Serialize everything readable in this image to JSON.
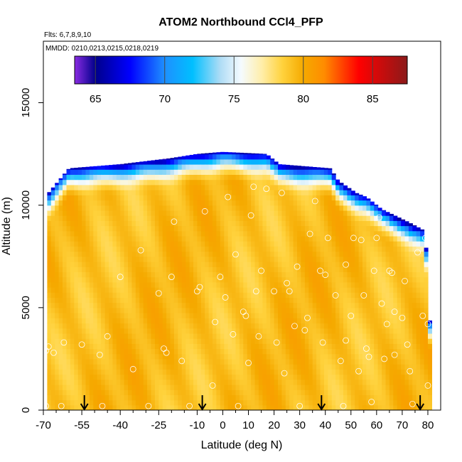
{
  "chart_data": {
    "type": "heatmap",
    "title": "ATOM2 Northbound CCl4_PFP",
    "subtitle_flights": "Flts: 6,7,8,9,10",
    "subtitle_dates": "MMDD: 0210,0213,0215,0218,0219",
    "xlabel": "Latitude (deg N)",
    "ylabel": "Altitude (m)",
    "xlim": [
      -70,
      85
    ],
    "ylim": [
      0,
      18000
    ],
    "x_ticks": [
      -70,
      -55,
      -40,
      -25,
      -10,
      0,
      10,
      20,
      30,
      40,
      50,
      60,
      70,
      80
    ],
    "x_tick_labels": [
      "-70",
      "-55",
      "-40",
      "-25",
      "-10",
      "0",
      "10",
      "20",
      "30",
      "40",
      "50",
      "60",
      "70",
      "80"
    ],
    "x_minor_ticks": [
      -65,
      -60,
      -50,
      -45,
      -35,
      -30,
      -20,
      -15,
      -5,
      5,
      15,
      25,
      35,
      45,
      55,
      65,
      75
    ],
    "y_ticks": [
      0,
      5000,
      10000,
      15000
    ],
    "y_tick_labels": [
      "0",
      "5000",
      "10000",
      "15000"
    ],
    "colorbar": {
      "min": 63.5,
      "max": 87.5,
      "ticks": [
        65,
        70,
        75,
        80,
        85
      ],
      "tick_labels": [
        "65",
        "70",
        "75",
        "80",
        "85"
      ],
      "stops": [
        {
          "v": 63.5,
          "c": "#8a2be2"
        },
        {
          "v": 65,
          "c": "#00008b"
        },
        {
          "v": 67.5,
          "c": "#0000ff"
        },
        {
          "v": 70,
          "c": "#1e90ff"
        },
        {
          "v": 72,
          "c": "#00bfff"
        },
        {
          "v": 74,
          "c": "#aedcf5"
        },
        {
          "v": 75.5,
          "c": "#f5fbff"
        },
        {
          "v": 77,
          "c": "#ffeeaa"
        },
        {
          "v": 78.5,
          "c": "#ffd23c"
        },
        {
          "v": 80,
          "c": "#f5aa00"
        },
        {
          "v": 81.5,
          "c": "#ff8c00"
        },
        {
          "v": 84,
          "c": "#ff0000"
        },
        {
          "v": 87.5,
          "c": "#8b1a1a"
        }
      ]
    },
    "surface_value": 79.3,
    "top_boundary": [
      {
        "lat": -69,
        "alt": 10300
      },
      {
        "lat": -68,
        "alt": 10600
      },
      {
        "lat": -64,
        "alt": 11200
      },
      {
        "lat": -60,
        "alt": 11800
      },
      {
        "lat": -40,
        "alt": 12000
      },
      {
        "lat": -20,
        "alt": 12300
      },
      {
        "lat": -10,
        "alt": 12500
      },
      {
        "lat": 0,
        "alt": 12600
      },
      {
        "lat": 17,
        "alt": 12500
      },
      {
        "lat": 22,
        "alt": 12000
      },
      {
        "lat": 42,
        "alt": 11800
      },
      {
        "lat": 45,
        "alt": 11200
      },
      {
        "lat": 52,
        "alt": 10600
      },
      {
        "lat": 56,
        "alt": 10400
      },
      {
        "lat": 62,
        "alt": 9800
      },
      {
        "lat": 72,
        "alt": 9200
      },
      {
        "lat": 78,
        "alt": 8800
      },
      {
        "lat": 80,
        "alt": 7400
      },
      {
        "lat": 80,
        "alt": 5500
      },
      {
        "lat": 81,
        "alt": 4000
      }
    ],
    "surface_level_arrows_lat": [
      -54,
      -8,
      38.5,
      77
    ],
    "samples": [
      {
        "lat": -69,
        "alt": 2900
      },
      {
        "lat": -69,
        "alt": 200
      },
      {
        "lat": -68,
        "alt": 3100
      },
      {
        "lat": -66,
        "alt": 2800
      },
      {
        "lat": -63,
        "alt": 200
      },
      {
        "lat": -62,
        "alt": 3300
      },
      {
        "lat": -55,
        "alt": 3200
      },
      {
        "lat": -48,
        "alt": 2700
      },
      {
        "lat": -45,
        "alt": 3600
      },
      {
        "lat": -47,
        "alt": 200
      },
      {
        "lat": -40,
        "alt": 6500
      },
      {
        "lat": -35,
        "alt": 2000
      },
      {
        "lat": -32,
        "alt": 7800
      },
      {
        "lat": -29,
        "alt": 200
      },
      {
        "lat": -25,
        "alt": 5700
      },
      {
        "lat": -23,
        "alt": 3000
      },
      {
        "lat": -22,
        "alt": 2800
      },
      {
        "lat": -20,
        "alt": 6500
      },
      {
        "lat": -19,
        "alt": 9200
      },
      {
        "lat": -16,
        "alt": 2400
      },
      {
        "lat": -13,
        "alt": 200
      },
      {
        "lat": -10,
        "alt": 5800
      },
      {
        "lat": -9,
        "alt": 6000
      },
      {
        "lat": -7,
        "alt": 9700
      },
      {
        "lat": -3,
        "alt": 4300
      },
      {
        "lat": -4,
        "alt": 1200
      },
      {
        "lat": -1,
        "alt": 6500
      },
      {
        "lat": 1,
        "alt": 5500
      },
      {
        "lat": 2,
        "alt": 10400
      },
      {
        "lat": 4,
        "alt": 3700
      },
      {
        "lat": 5,
        "alt": 7600
      },
      {
        "lat": 6,
        "alt": 200
      },
      {
        "lat": 8,
        "alt": 4800
      },
      {
        "lat": 9,
        "alt": 4600
      },
      {
        "lat": 10,
        "alt": 2300
      },
      {
        "lat": 11,
        "alt": 9500
      },
      {
        "lat": 12,
        "alt": 10900
      },
      {
        "lat": 13,
        "alt": 5800
      },
      {
        "lat": 14,
        "alt": 3600
      },
      {
        "lat": 15,
        "alt": 6800
      },
      {
        "lat": 17,
        "alt": 10800
      },
      {
        "lat": 20,
        "alt": 5800
      },
      {
        "lat": 21,
        "alt": 3300
      },
      {
        "lat": 23,
        "alt": 10600
      },
      {
        "lat": 24,
        "alt": 1800
      },
      {
        "lat": 25,
        "alt": 6200
      },
      {
        "lat": 26,
        "alt": 5800
      },
      {
        "lat": 28,
        "alt": 4100
      },
      {
        "lat": 29,
        "alt": 7000
      },
      {
        "lat": 30,
        "alt": 200
      },
      {
        "lat": 32,
        "alt": 3900
      },
      {
        "lat": 33,
        "alt": 4500
      },
      {
        "lat": 34,
        "alt": 8600
      },
      {
        "lat": 36,
        "alt": 10200
      },
      {
        "lat": 38,
        "alt": 6800
      },
      {
        "lat": 39,
        "alt": 3300
      },
      {
        "lat": 40,
        "alt": 6600
      },
      {
        "lat": 41,
        "alt": 8400
      },
      {
        "lat": 44,
        "alt": 5600
      },
      {
        "lat": 46,
        "alt": 2400
      },
      {
        "lat": 47,
        "alt": 200
      },
      {
        "lat": 48,
        "alt": 3400
      },
      {
        "lat": 48,
        "alt": 7100
      },
      {
        "lat": 50,
        "alt": 4600
      },
      {
        "lat": 51,
        "alt": 8400
      },
      {
        "lat": 53,
        "alt": 1900
      },
      {
        "lat": 54,
        "alt": 8300
      },
      {
        "lat": 55,
        "alt": 5600
      },
      {
        "lat": 56,
        "alt": 3000
      },
      {
        "lat": 57,
        "alt": 2600
      },
      {
        "lat": 58,
        "alt": 400
      },
      {
        "lat": 59,
        "alt": 6800
      },
      {
        "lat": 60,
        "alt": 8400
      },
      {
        "lat": 61,
        "alt": 9400
      },
      {
        "lat": 62,
        "alt": 5200
      },
      {
        "lat": 63,
        "alt": 2500
      },
      {
        "lat": 64,
        "alt": 4200
      },
      {
        "lat": 65,
        "alt": 6800
      },
      {
        "lat": 66,
        "alt": 6700
      },
      {
        "lat": 67,
        "alt": 4800
      },
      {
        "lat": 67,
        "alt": 2700
      },
      {
        "lat": 68,
        "alt": 9700
      },
      {
        "lat": 70,
        "alt": 4500
      },
      {
        "lat": 71,
        "alt": 6300
      },
      {
        "lat": 72,
        "alt": 3200
      },
      {
        "lat": 73,
        "alt": 1900
      },
      {
        "lat": 74,
        "alt": 300
      },
      {
        "lat": 76,
        "alt": 7700
      },
      {
        "lat": 78,
        "alt": 4600
      },
      {
        "lat": 79,
        "alt": 8400
      },
      {
        "lat": 80,
        "alt": 4200
      },
      {
        "lat": 80,
        "alt": 1200
      }
    ]
  }
}
